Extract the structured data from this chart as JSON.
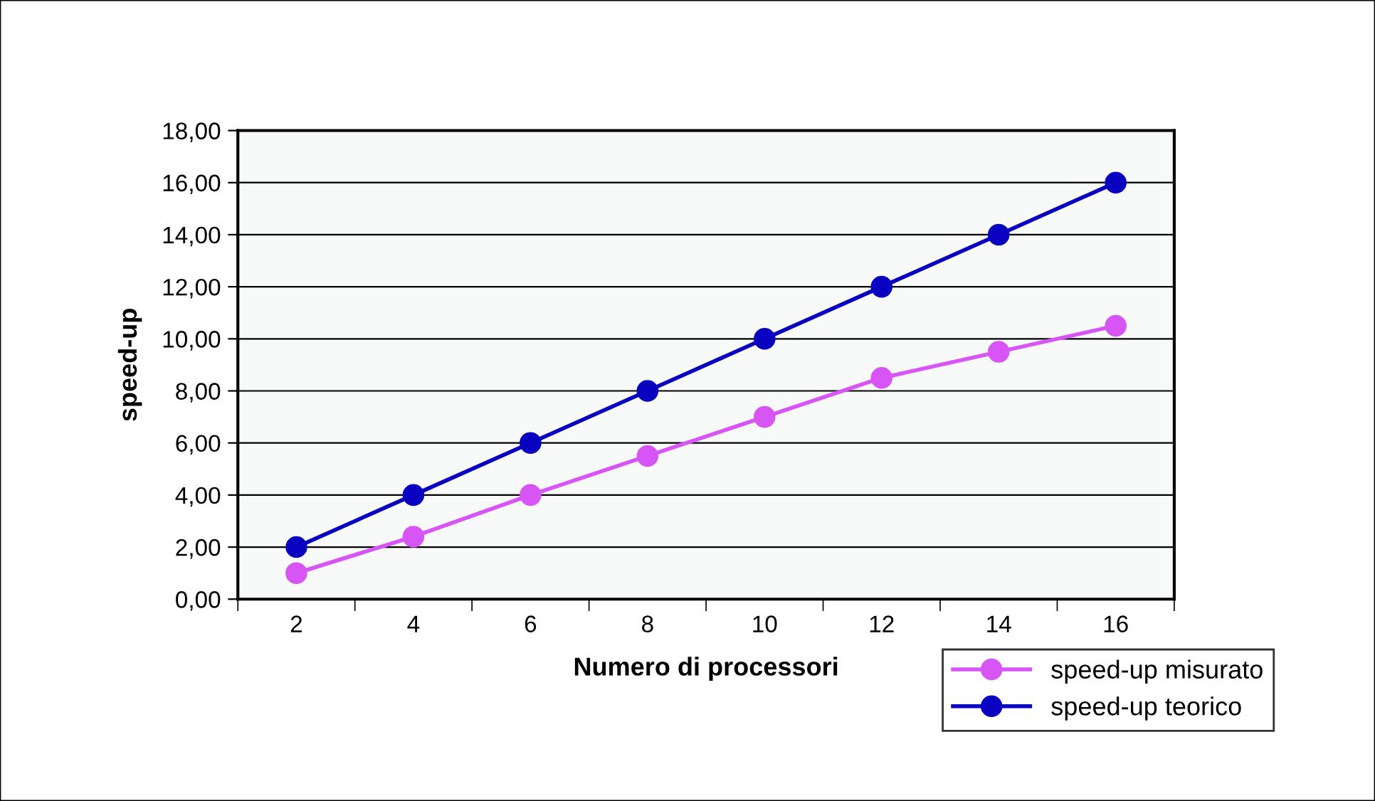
{
  "chart_data": {
    "type": "line",
    "xlabel": "Numero di processori",
    "ylabel": "speed-up",
    "categories": [
      "2",
      "4",
      "6",
      "8",
      "10",
      "12",
      "14",
      "16"
    ],
    "series": [
      {
        "name": "speed-up misurato",
        "color": "#d855f5",
        "values": [
          1.0,
          2.4,
          4.0,
          5.5,
          7.0,
          8.5,
          9.5,
          10.5
        ]
      },
      {
        "name": "speed-up teorico",
        "color": "#0a00c0",
        "values": [
          2,
          4,
          6,
          8,
          10,
          12,
          14,
          16
        ]
      }
    ],
    "ylim": [
      0,
      18
    ],
    "yticks": [
      {
        "value": 0,
        "label": "0,00"
      },
      {
        "value": 2,
        "label": "2,00"
      },
      {
        "value": 4,
        "label": "4,00"
      },
      {
        "value": 6,
        "label": "6,00"
      },
      {
        "value": 8,
        "label": "8,00"
      },
      {
        "value": 10,
        "label": "10,00"
      },
      {
        "value": 12,
        "label": "12,00"
      },
      {
        "value": 14,
        "label": "14,00"
      },
      {
        "value": 16,
        "label": "16,00"
      },
      {
        "value": 18,
        "label": "18,00"
      }
    ],
    "grid": "y",
    "legend": "bottom right",
    "marker": "circle",
    "line_style": "solid"
  }
}
